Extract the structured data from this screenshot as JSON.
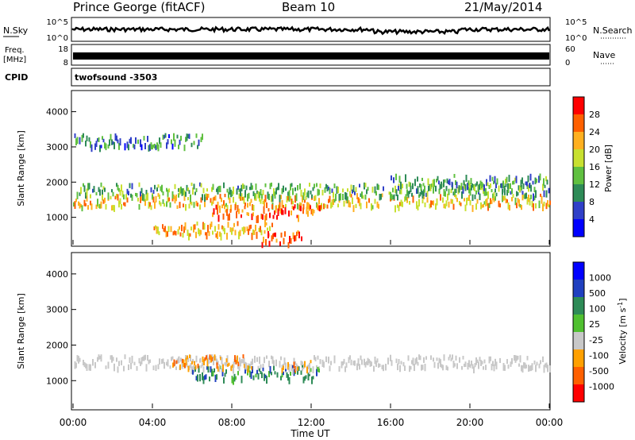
{
  "header": {
    "site": "Prince George (fitACF)",
    "beam": "Beam 10",
    "date": "21/May/2014"
  },
  "panels": {
    "nsky": {
      "label": "N.Sky",
      "ytick_top": "10^5",
      "ytick_bottom": "10^0",
      "right_label": "N.Search",
      "right_top": "10^5",
      "right_bottom": "10^0"
    },
    "freq": {
      "label_line1": "Freq.",
      "label_line2": "[MHz]",
      "ytick_top": "18",
      "ytick_bottom": "8",
      "right_label": "Nave",
      "right_top": "60",
      "right_bottom": "0"
    },
    "cpid": {
      "label": "CPID",
      "value": "twofsound  -3503"
    }
  },
  "colors": {
    "grey": "#c8c8c8",
    "power_scale": [
      "#0000ff",
      "#3040c8",
      "#2e8b57",
      "#60c040",
      "#c8e030",
      "#ffb020",
      "#ff6000",
      "#ff0000"
    ],
    "velocity_scale": [
      "#ff0000",
      "#ff6000",
      "#ffa000",
      "#c8c8c8",
      "#50c030",
      "#2e8b57",
      "#2040c0",
      "#0000ff"
    ]
  },
  "chart_data": [
    {
      "type": "heatmap",
      "title": "Power",
      "ylabel": "Slant Range [km]",
      "xlabel": "Time UT",
      "xlim": [
        "00:00",
        "24:00"
      ],
      "ylim": [
        180,
        4600
      ],
      "yticks": [
        "1000",
        "2000",
        "3000",
        "4000"
      ],
      "colorbar": {
        "label": "Power [dB]",
        "ticks": [
          "4",
          "8",
          "12",
          "16",
          "20",
          "24",
          "28"
        ],
        "range": [
          0,
          30
        ]
      },
      "bands": [
        {
          "t_start": 0.0,
          "t_end": 24.0,
          "range_km": 1450,
          "value_db": 20
        },
        {
          "t_start": 0.0,
          "t_end": 24.0,
          "range_km": 1750,
          "value_db": 12
        },
        {
          "t_start": 0.0,
          "t_end": 6.5,
          "range_km": 3150,
          "value_db": 8
        },
        {
          "t_start": 4.0,
          "t_end": 10.0,
          "range_km": 650,
          "value_db": 22
        },
        {
          "t_start": 7.0,
          "t_end": 12.5,
          "range_km": 1150,
          "value_db": 26
        },
        {
          "t_start": 9.5,
          "t_end": 11.5,
          "range_km": 400,
          "value_db": 28
        },
        {
          "t_start": 16.0,
          "t_end": 24.0,
          "range_km": 2000,
          "value_db": 10
        }
      ]
    },
    {
      "type": "heatmap",
      "title": "Velocity",
      "ylabel": "Slant Range [km]",
      "xlabel": "Time UT",
      "xlim": [
        "00:00",
        "24:00"
      ],
      "ylim": [
        180,
        4600
      ],
      "yticks": [
        "1000",
        "2000",
        "3000",
        "4000"
      ],
      "xticks": [
        "00:00",
        "04:00",
        "08:00",
        "12:00",
        "16:00",
        "20:00",
        "00:00"
      ],
      "colorbar": {
        "label": "Velocity [m s^-1]",
        "ticks": [
          "1000",
          "500",
          "100",
          "25",
          "-25",
          "-100",
          "-500",
          "-1000"
        ]
      },
      "bands": [
        {
          "t_start": 0.0,
          "t_end": 24.0,
          "range_km": 1500,
          "value_ms": 0
        },
        {
          "t_start": 6.0,
          "t_end": 12.5,
          "range_km": 1200,
          "value_ms": 150
        },
        {
          "t_start": 5.0,
          "t_end": 9.0,
          "range_km": 1500,
          "value_ms": -100
        },
        {
          "t_start": 10.5,
          "t_end": 12.0,
          "range_km": 1350,
          "value_ms": -200
        }
      ]
    }
  ],
  "time_axis_label": "Time UT"
}
